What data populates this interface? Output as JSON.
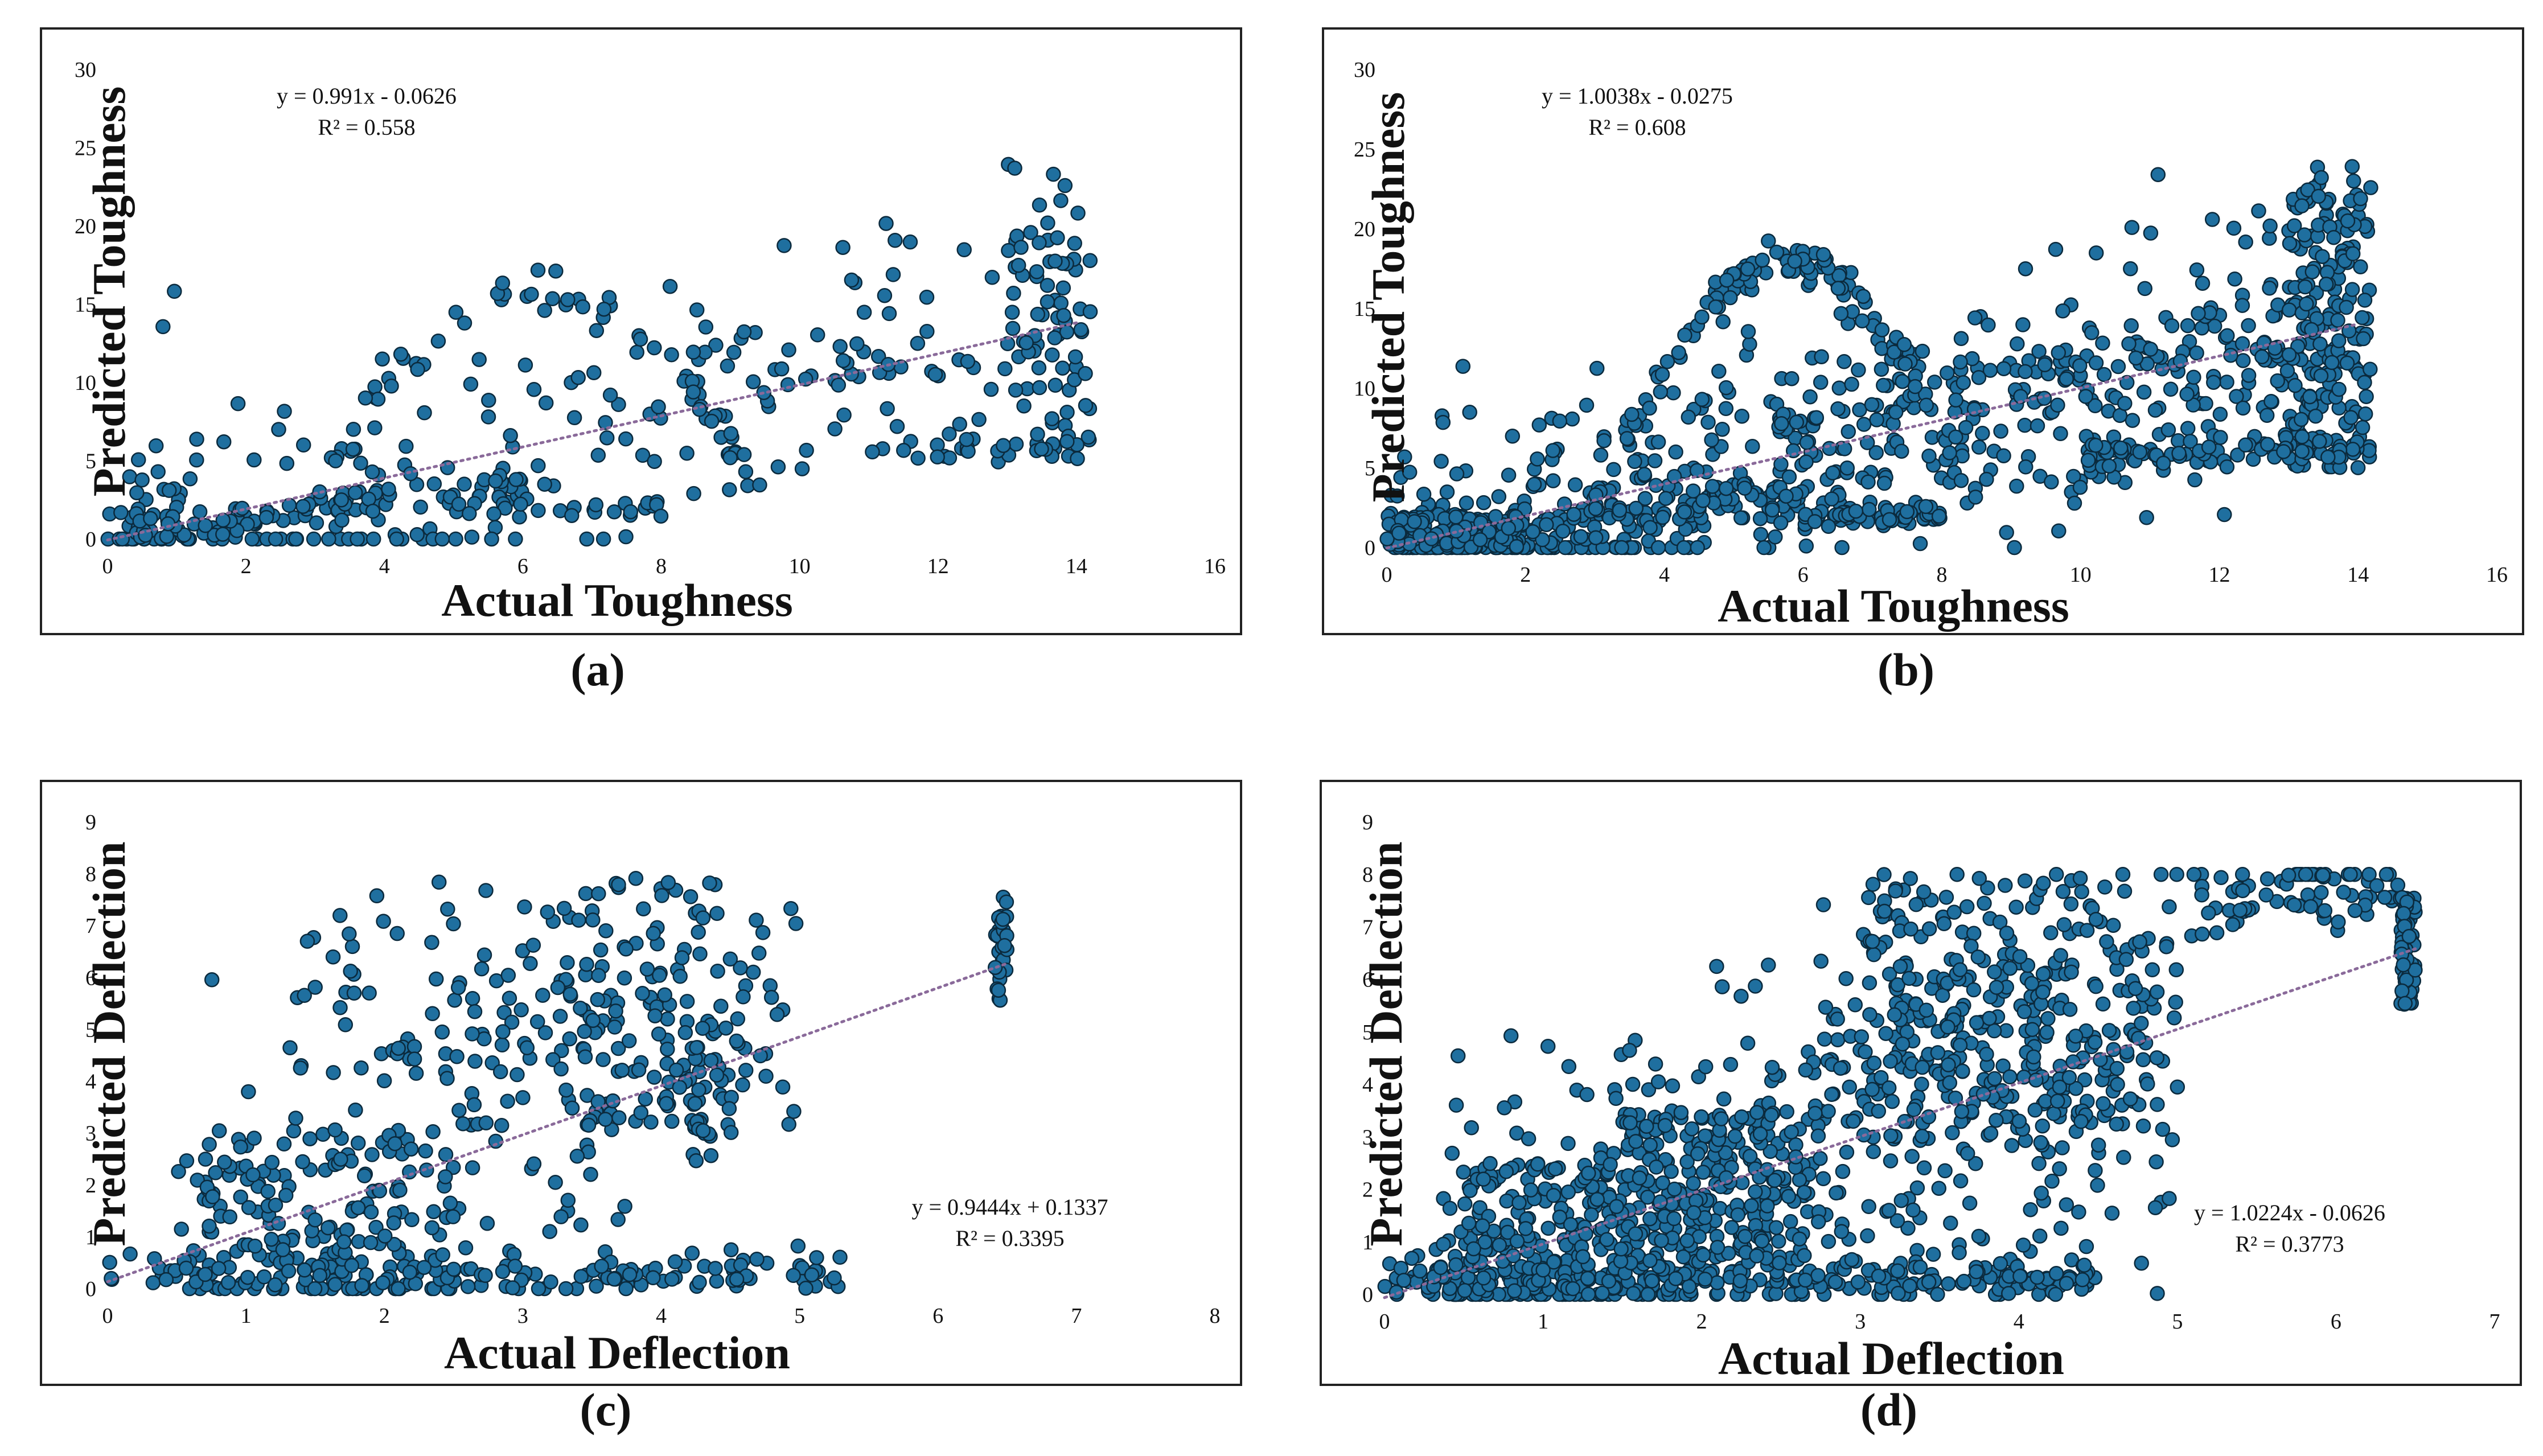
{
  "chart_data": [
    {
      "type": "scatter",
      "caption": "(a)",
      "xlabel": "Actual Toughness",
      "ylabel": "Predicted Toughness",
      "xticks": [
        "0",
        "2",
        "4",
        "6",
        "8",
        "10",
        "12",
        "14",
        "16"
      ],
      "yticks": [
        "0",
        "5",
        "10",
        "15",
        "20",
        "25",
        "30"
      ],
      "xlim": [
        0,
        16
      ],
      "ylim": [
        0,
        30
      ],
      "equation": "y = 0.991x  - 0.0626",
      "r2": "R² = 0.558",
      "trend": {
        "slope": 0.991,
        "intercept": -0.0626,
        "x_range": [
          0,
          14
        ]
      },
      "point_color": "#1f6f9f",
      "n_points": 520,
      "seed": 11,
      "clusters": [
        {
          "type": "trend",
          "x": [
            0,
            14
          ],
          "slope": 0.991,
          "intercept": -0.06,
          "spread": 4.2,
          "weight": 0.45
        },
        {
          "type": "band",
          "x": [
            0.2,
            6.5
          ],
          "slope": 0.55,
          "intercept": 0.2,
          "spread": 0.5,
          "weight": 0.14
        },
        {
          "type": "flat",
          "x": [
            5,
            8
          ],
          "y": 2.0,
          "spread": 0.35,
          "weight": 0.05
        },
        {
          "type": "arc",
          "x": [
            3,
            9.5
          ],
          "peak": 16,
          "base": 3,
          "spread": 1.4,
          "weight": 0.12
        },
        {
          "type": "vert",
          "x": [
            13,
            14.2
          ],
          "y": [
            5,
            24
          ],
          "weight": 0.14
        },
        {
          "type": "band",
          "x": [
            11,
            14
          ],
          "slope": 0,
          "intercept": 6,
          "spread": 0.5,
          "weight": 0.05
        },
        {
          "type": "blob",
          "x": [
            0,
            2
          ],
          "y": [
            0,
            2
          ],
          "weight": 0.05
        }
      ]
    },
    {
      "type": "scatter",
      "caption": "(b)",
      "xlabel": "Actual Toughness",
      "ylabel": "Predicted Toughness",
      "xticks": [
        "0",
        "2",
        "4",
        "6",
        "8",
        "10",
        "12",
        "14",
        "16"
      ],
      "yticks": [
        "0",
        "5",
        "10",
        "15",
        "20",
        "25",
        "30"
      ],
      "xlim": [
        0,
        16
      ],
      "ylim": [
        0,
        30
      ],
      "equation": "y = 1.0038x  - 0.0275",
      "r2": "R² = 0.608",
      "trend": {
        "slope": 1.0038,
        "intercept": -0.0275,
        "x_range": [
          0,
          14
        ]
      },
      "point_color": "#1f6f9f",
      "n_points": 1300,
      "seed": 23,
      "clusters": [
        {
          "type": "trend",
          "x": [
            0,
            14
          ],
          "slope": 1.0,
          "intercept": 0,
          "spread": 3.6,
          "weight": 0.48
        },
        {
          "type": "band",
          "x": [
            0,
            6
          ],
          "slope": 0.6,
          "intercept": 0,
          "spread": 0.7,
          "weight": 0.12
        },
        {
          "type": "arc",
          "x": [
            3,
            8.5
          ],
          "peak": 18,
          "base": 3,
          "spread": 1.2,
          "weight": 0.1
        },
        {
          "type": "vert",
          "x": [
            13,
            14.2
          ],
          "y": [
            5,
            24
          ],
          "weight": 0.12
        },
        {
          "type": "band",
          "x": [
            10,
            14
          ],
          "slope": 0,
          "intercept": 6,
          "spread": 0.5,
          "weight": 0.06
        },
        {
          "type": "flat",
          "x": [
            6,
            8
          ],
          "y": 2.0,
          "spread": 0.35,
          "weight": 0.04
        },
        {
          "type": "blob",
          "x": [
            0,
            2
          ],
          "y": [
            0,
            2
          ],
          "weight": 0.08
        }
      ]
    },
    {
      "type": "scatter",
      "caption": "(c)",
      "xlabel": "Actual Deflection",
      "ylabel": "Predicted Deflection",
      "xticks": [
        "0",
        "1",
        "2",
        "3",
        "4",
        "5",
        "6",
        "7",
        "8"
      ],
      "yticks": [
        "0",
        "1",
        "2",
        "3",
        "4",
        "5",
        "6",
        "7",
        "8",
        "9"
      ],
      "xlim": [
        0,
        8
      ],
      "ylim": [
        0,
        9
      ],
      "equation": "y = 0.9444x  + 0.1337",
      "r2": "R² = 0.3395",
      "trend": {
        "slope": 0.9444,
        "intercept": 0.1337,
        "x_range": [
          0,
          6.5
        ]
      },
      "point_color": "#1f6f9f",
      "n_points": 700,
      "seed": 37,
      "clusters": [
        {
          "type": "trend",
          "x": [
            0.5,
            5
          ],
          "slope": 0.95,
          "intercept": 0.1,
          "spread": 1.7,
          "weight": 0.36
        },
        {
          "type": "flat",
          "x": [
            0,
            5.3
          ],
          "y": 0.3,
          "spread": 0.18,
          "weight": 0.22
        },
        {
          "type": "blob",
          "x": [
            3.4,
            4.6
          ],
          "y": [
            3,
            8
          ],
          "weight": 0.15
        },
        {
          "type": "blob",
          "x": [
            1.3,
            3.5
          ],
          "y": [
            4,
            8
          ],
          "weight": 0.1
        },
        {
          "type": "vert",
          "x": [
            6.4,
            6.5
          ],
          "y": [
            5.5,
            7.6
          ],
          "weight": 0.04
        },
        {
          "type": "blob",
          "x": [
            0.5,
            2.5
          ],
          "y": [
            0,
            3
          ],
          "weight": 0.13
        }
      ]
    },
    {
      "type": "scatter",
      "caption": "(d)",
      "xlabel": "Actual Deflection",
      "ylabel": "Predicted Deflection",
      "xticks": [
        "0",
        "1",
        "2",
        "3",
        "4",
        "5",
        "6",
        "7"
      ],
      "yticks": [
        "0",
        "1",
        "2",
        "3",
        "4",
        "5",
        "6",
        "7",
        "8",
        "9"
      ],
      "xlim": [
        0,
        7
      ],
      "ylim": [
        0,
        9
      ],
      "equation": "y = 1.0224x  - 0.0626",
      "r2": "R² = 0.3773",
      "trend": {
        "slope": 1.0224,
        "intercept": -0.0626,
        "x_range": [
          0,
          6.5
        ]
      },
      "point_color": "#1f6f9f",
      "n_points": 1500,
      "seed": 53,
      "clusters": [
        {
          "type": "trend",
          "x": [
            0.4,
            5
          ],
          "slope": 1.0,
          "intercept": 0,
          "spread": 1.9,
          "weight": 0.33
        },
        {
          "type": "flat",
          "x": [
            0,
            4.5
          ],
          "y": 0.3,
          "spread": 0.18,
          "weight": 0.16
        },
        {
          "type": "blob",
          "x": [
            1.5,
            2.8
          ],
          "y": [
            0.5,
            3.5
          ],
          "weight": 0.14
        },
        {
          "type": "blob",
          "x": [
            3.0,
            4.8
          ],
          "y": [
            3,
            8
          ],
          "weight": 0.17
        },
        {
          "type": "band",
          "x": [
            5,
            6.4
          ],
          "slope": 0.1,
          "intercept": 7.2,
          "spread": 0.4,
          "weight": 0.05
        },
        {
          "type": "vert",
          "x": [
            6.4,
            6.5
          ],
          "y": [
            5.5,
            7.6
          ],
          "weight": 0.05
        },
        {
          "type": "blob",
          "x": [
            0.3,
            1.5
          ],
          "y": [
            0,
            2.5
          ],
          "weight": 0.1
        }
      ]
    }
  ]
}
